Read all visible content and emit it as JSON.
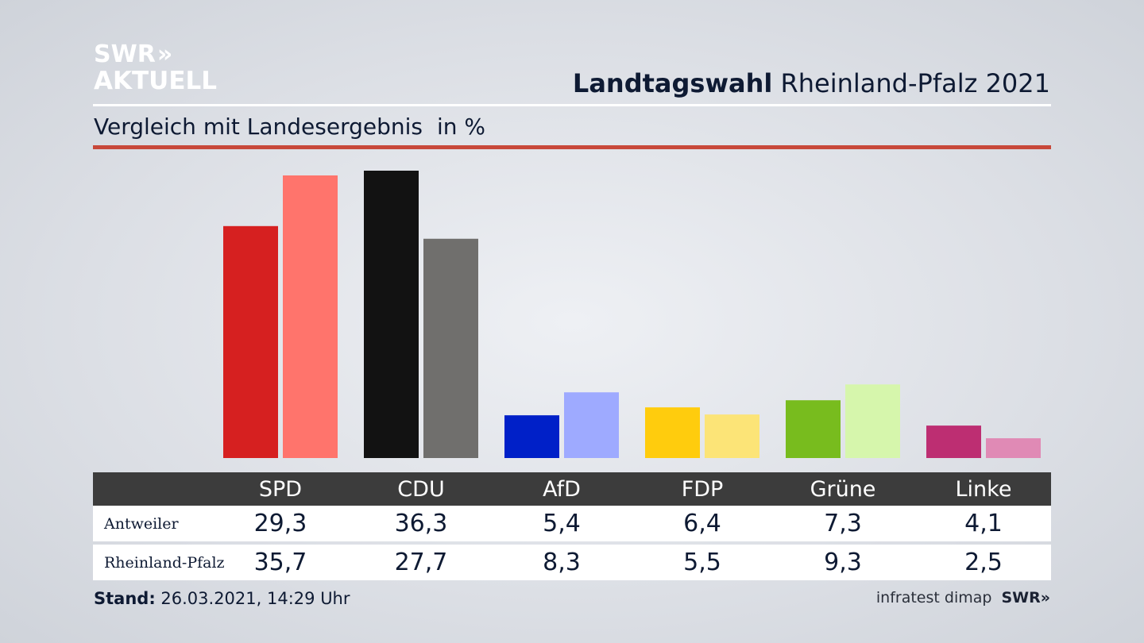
{
  "logo": {
    "line1": "SWR",
    "line1_chevrons": "»",
    "line2": "AKTUELL"
  },
  "header": {
    "title_bold": "Landtagswahl",
    "title_rest": "Rheinland-Pfalz 2021"
  },
  "subtitle": {
    "text": "Vergleich mit Landesergebnis",
    "unit": "in %"
  },
  "chart_data": {
    "type": "bar",
    "categories": [
      "SPD",
      "CDU",
      "AfD",
      "FDP",
      "Grüne",
      "Linke"
    ],
    "series": [
      {
        "name": "Antweiler",
        "values": [
          29.3,
          36.3,
          5.4,
          6.4,
          7.3,
          4.1
        ],
        "colors": [
          "#d62020",
          "#121212",
          "#0020c8",
          "#ffcc0d",
          "#78bc1e",
          "#bd2e72"
        ]
      },
      {
        "name": "Rheinland-Pfalz",
        "values": [
          35.7,
          27.7,
          8.3,
          5.5,
          9.3,
          2.5
        ],
        "colors": [
          "#ff746c",
          "#706f6d",
          "#9eaaff",
          "#fce477",
          "#d6f6ac",
          "#e08ab5"
        ]
      }
    ],
    "value_labels": [
      [
        "29,3",
        "36,3",
        "5,4",
        "6,4",
        "7,3",
        "4,1"
      ],
      [
        "35,7",
        "27,7",
        "8,3",
        "5,5",
        "9,3",
        "2,5"
      ]
    ],
    "ylim": [
      0,
      36.3
    ]
  },
  "footer": {
    "stand_label": "Stand:",
    "stand_value": "26.03.2021, 14:29 Uhr",
    "source": "infratest dimap",
    "brand": "SWR",
    "brand_chevrons": "»"
  }
}
